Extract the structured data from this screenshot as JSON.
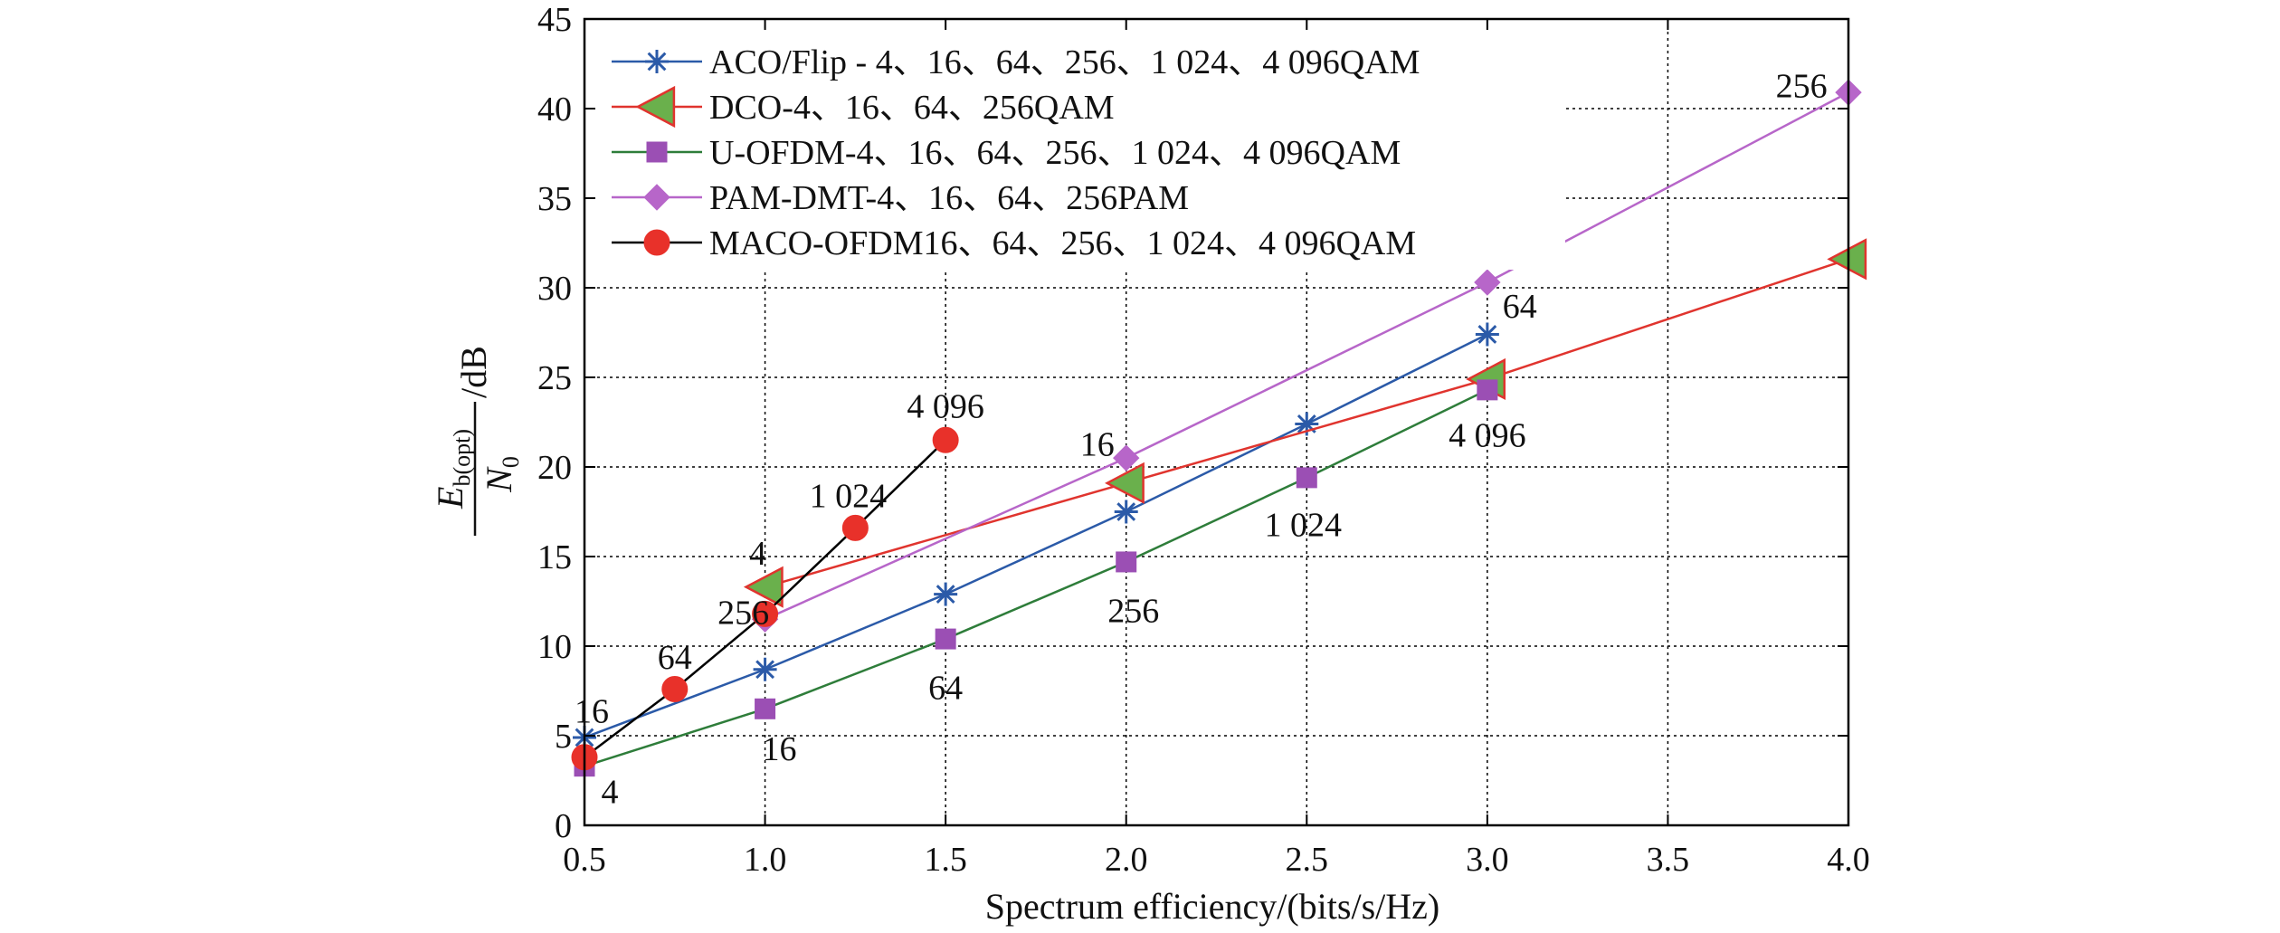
{
  "chart_data": {
    "type": "line",
    "xlabel": "Spectrum efficiency/(bits/s/Hz)",
    "ylabel": {
      "main": "E",
      "sub": "b(opt)",
      "den_main": "N",
      "den_sub": "0",
      "unit": "/dB"
    },
    "xlim": [
      0.5,
      4.0
    ],
    "ylim": [
      0,
      45
    ],
    "xticks": [
      0.5,
      1.0,
      1.5,
      2.0,
      2.5,
      3.0,
      3.5,
      4.0
    ],
    "xtick_labels": [
      "0.5",
      "1.0",
      "1.5",
      "2.0",
      "2.5",
      "3.0",
      "3.5",
      "4.0"
    ],
    "yticks": [
      0,
      5,
      10,
      15,
      20,
      25,
      30,
      35,
      40,
      45
    ],
    "ytick_labels": [
      "0",
      "5",
      "10",
      "15",
      "20",
      "25",
      "30",
      "35",
      "40",
      "45"
    ],
    "grid": true,
    "legend_position": "top-left",
    "series": [
      {
        "name": "ACO/Flip - 4、16、64、256、1 024、4 096QAM",
        "color": "#2b5aa8",
        "marker": "asterisk",
        "x": [
          0.5,
          1.0,
          1.5,
          2.0,
          2.5,
          3.0
        ],
        "y": [
          4.9,
          8.7,
          12.9,
          17.5,
          22.4,
          27.4
        ]
      },
      {
        "name": "DCO-4、16、64、256QAM",
        "color": "#e0342e",
        "marker": "triangle-left",
        "marker_fill": "#6ab04c",
        "x": [
          1.0,
          2.0,
          3.0,
          4.0
        ],
        "y": [
          13.3,
          19.1,
          24.9,
          31.6
        ]
      },
      {
        "name": "U-OFDM-4、16、64、256、1 024、4 096QAM",
        "color": "#2e7d3a",
        "marker": "square",
        "marker_fill": "#9b4fb4",
        "x": [
          0.5,
          1.0,
          1.5,
          2.0,
          2.5,
          3.0
        ],
        "y": [
          3.3,
          6.5,
          10.4,
          14.7,
          19.4,
          24.3
        ]
      },
      {
        "name": "PAM-DMT-4、16、64、256PAM",
        "color": "#b766c9",
        "marker": "diamond",
        "x": [
          1.0,
          2.0,
          3.0,
          4.0
        ],
        "y": [
          11.5,
          20.5,
          30.3,
          40.9
        ]
      },
      {
        "name": "MACO-OFDM16、64、256、1 024、4 096QAM",
        "color": "#000000",
        "marker": "circle",
        "marker_fill": "#e8312a",
        "x": [
          0.5,
          0.75,
          1.0,
          1.25,
          1.5
        ],
        "y": [
          3.8,
          7.6,
          11.8,
          16.6,
          21.5
        ]
      }
    ],
    "annotations": [
      {
        "text": "16",
        "x": 0.52,
        "y": 6.4
      },
      {
        "text": "4",
        "x": 0.57,
        "y": 1.9
      },
      {
        "text": "64",
        "x": 0.75,
        "y": 9.4
      },
      {
        "text": "16",
        "x": 1.04,
        "y": 4.3
      },
      {
        "text": "4",
        "x": 0.98,
        "y": 15.2
      },
      {
        "text": "256",
        "x": 0.94,
        "y": 11.9
      },
      {
        "text": "1 024",
        "x": 1.23,
        "y": 18.4
      },
      {
        "text": "4 096",
        "x": 1.5,
        "y": 23.4
      },
      {
        "text": "64",
        "x": 1.5,
        "y": 7.7
      },
      {
        "text": "16",
        "x": 1.92,
        "y": 21.3
      },
      {
        "text": "256",
        "x": 2.02,
        "y": 12.0
      },
      {
        "text": "1 024",
        "x": 2.49,
        "y": 16.8
      },
      {
        "text": "4 096",
        "x": 3.0,
        "y": 21.8
      },
      {
        "text": "64",
        "x": 3.09,
        "y": 29.0
      },
      {
        "text": "256",
        "x": 3.87,
        "y": 41.3
      }
    ]
  }
}
